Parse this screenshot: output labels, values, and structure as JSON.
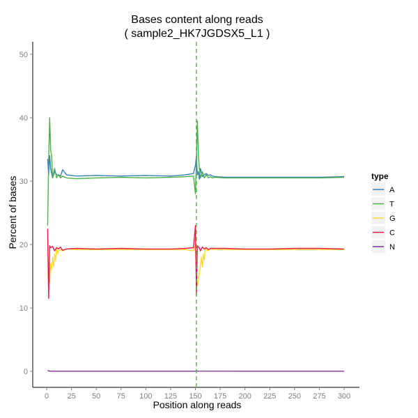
{
  "chart_data": {
    "type": "line",
    "title": [
      "Bases content along reads",
      "( sample2_HK7JGDSX5_L1 )"
    ],
    "xlabel": "Position along reads",
    "ylabel": "Percent of bases",
    "xlim": [
      0,
      300
    ],
    "ylim": [
      0,
      50
    ],
    "xticks": [
      0,
      25,
      50,
      75,
      100,
      125,
      150,
      175,
      200,
      225,
      250,
      275,
      300
    ],
    "yticks": [
      0,
      10,
      20,
      30,
      40,
      50
    ],
    "grid": false,
    "legend": {
      "title": "type",
      "position": "right"
    },
    "vline": {
      "x": 151,
      "style": "dashed",
      "color": "#4daf4a"
    },
    "series": [
      {
        "name": "A",
        "color": "#377eb8",
        "x": [
          1,
          2,
          3,
          4,
          6,
          8,
          10,
          12,
          14,
          16,
          20,
          30,
          50,
          75,
          100,
          125,
          140,
          148,
          150,
          151,
          152,
          153,
          154,
          155,
          157,
          159,
          161,
          163,
          165,
          167,
          170,
          180,
          200,
          225,
          250,
          275,
          300
        ],
        "y": [
          33.5,
          31,
          34,
          32,
          30.5,
          31.5,
          31,
          31,
          30.8,
          31.8,
          31,
          30.8,
          30.9,
          30.8,
          30.9,
          30.8,
          31,
          31.2,
          32.5,
          34,
          31,
          31.5,
          30.3,
          32,
          30.7,
          31,
          31.2,
          30.9,
          31,
          30.8,
          30.7,
          30.6,
          30.6,
          30.6,
          30.6,
          30.6,
          30.7
        ]
      },
      {
        "name": "T",
        "color": "#4daf4a",
        "x": [
          1,
          2,
          3,
          4,
          5,
          6,
          8,
          10,
          12,
          14,
          16,
          20,
          30,
          50,
          75,
          100,
          125,
          140,
          148,
          150,
          151,
          152,
          153,
          154,
          155,
          157,
          159,
          161,
          163,
          165,
          167,
          170,
          180,
          200,
          225,
          250,
          275,
          300
        ],
        "y": [
          23,
          33,
          40,
          35,
          34,
          30.5,
          32,
          30.5,
          31,
          30.5,
          30.8,
          30.5,
          30.4,
          30.5,
          30.6,
          30.5,
          30.6,
          30.7,
          30.8,
          28,
          33,
          39.5,
          34,
          32,
          30.5,
          31.5,
          30.5,
          31,
          30.5,
          30.7,
          30.5,
          30.6,
          30.5,
          30.5,
          30.5,
          30.5,
          30.5,
          30.6
        ]
      },
      {
        "name": "G",
        "color": "#ffd92f",
        "x": [
          1,
          2,
          3,
          4,
          5,
          6,
          7,
          8,
          9,
          10,
          11,
          12,
          14,
          16,
          20,
          30,
          50,
          75,
          100,
          125,
          140,
          148,
          150,
          151,
          152,
          153,
          154,
          155,
          156,
          157,
          158,
          159,
          160,
          162,
          165,
          170,
          180,
          200,
          225,
          250,
          275,
          300
        ],
        "y": [
          21,
          15,
          14,
          17,
          16,
          18,
          16.5,
          18.5,
          17.5,
          19.5,
          18.5,
          19,
          19.2,
          19,
          19.3,
          19.2,
          19.2,
          19.2,
          19.2,
          19.2,
          19.2,
          19,
          20,
          15,
          13.5,
          14.5,
          15.5,
          16.5,
          18,
          16.5,
          18.5,
          17.5,
          19.5,
          19,
          19.3,
          19.2,
          19.2,
          19.2,
          19.2,
          19.2,
          19.2,
          19.2
        ]
      },
      {
        "name": "C",
        "color": "#e41a4a",
        "x": [
          1,
          2,
          3,
          4,
          6,
          8,
          10,
          12,
          14,
          16,
          20,
          30,
          50,
          75,
          100,
          125,
          140,
          148,
          150,
          151,
          152,
          153,
          154,
          155,
          157,
          159,
          161,
          163,
          165,
          170,
          180,
          200,
          225,
          250,
          275,
          300
        ],
        "y": [
          22.5,
          11.5,
          19.8,
          19.5,
          19.7,
          19,
          19.5,
          19.3,
          19.6,
          19.1,
          19.3,
          19.4,
          19.3,
          19.4,
          19.3,
          19.3,
          19.4,
          19.5,
          23,
          12,
          19.8,
          19.6,
          19.5,
          19,
          19.6,
          19.3,
          19.5,
          19.2,
          19.4,
          19.4,
          19.4,
          19.3,
          19.3,
          19.4,
          19.4,
          19.3
        ]
      },
      {
        "name": "N",
        "color": "#7b3294",
        "x": [
          1,
          2,
          5,
          10,
          50,
          100,
          150,
          151,
          152,
          200,
          250,
          300
        ],
        "y": [
          0.15,
          0.05,
          0.02,
          0.02,
          0.02,
          0.02,
          0.02,
          0.1,
          0.03,
          0.02,
          0.02,
          0.02
        ]
      }
    ]
  }
}
